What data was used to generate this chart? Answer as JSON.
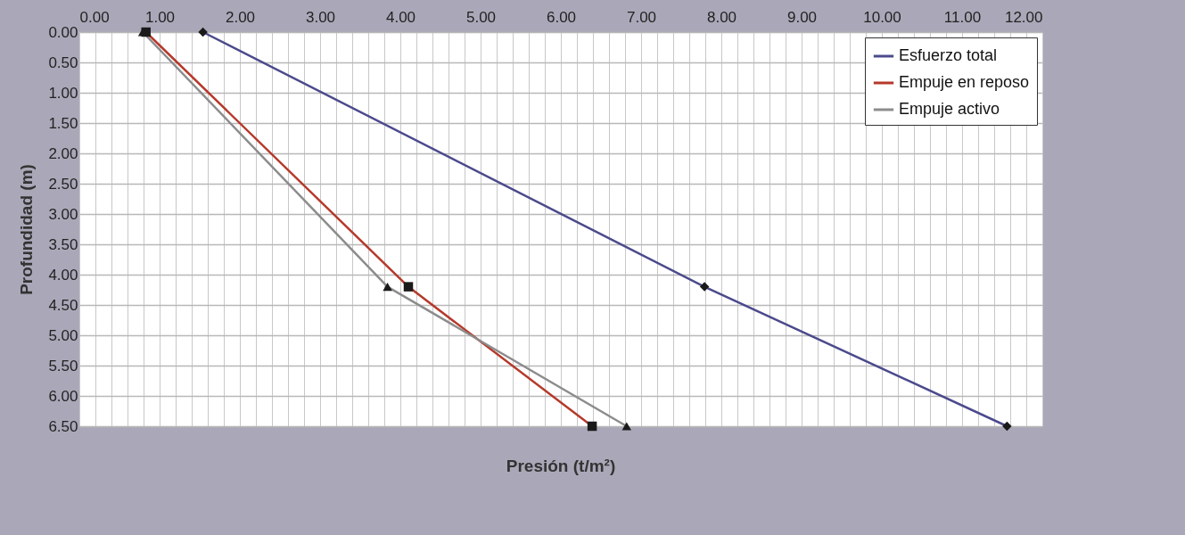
{
  "chart_data": {
    "type": "line",
    "xlabel": "Presión (t/m²)",
    "ylabel": "Profundidad (m)",
    "xlim": [
      0,
      12
    ],
    "ylim": [
      6.5,
      0
    ],
    "xticks": [
      {
        "value": 0,
        "label": "0.00"
      },
      {
        "value": 0.2,
        "label": null
      },
      {
        "value": 0.4,
        "label": null
      },
      {
        "value": 0.6,
        "label": null
      },
      {
        "value": 0.8,
        "label": null
      },
      {
        "value": 1,
        "label": "1.00"
      },
      {
        "value": 1.2,
        "label": null
      },
      {
        "value": 1.4,
        "label": null
      },
      {
        "value": 1.6,
        "label": null
      },
      {
        "value": 1.8,
        "label": null
      },
      {
        "value": 2,
        "label": "2.00"
      },
      {
        "value": 2.2,
        "label": null
      },
      {
        "value": 2.4,
        "label": null
      },
      {
        "value": 2.6,
        "label": null
      },
      {
        "value": 2.8,
        "label": null
      },
      {
        "value": 3,
        "label": "3.00"
      },
      {
        "value": 3.2,
        "label": null
      },
      {
        "value": 3.4,
        "label": null
      },
      {
        "value": 3.6,
        "label": null
      },
      {
        "value": 3.8,
        "label": null
      },
      {
        "value": 4,
        "label": "4.00"
      },
      {
        "value": 4.2,
        "label": null
      },
      {
        "value": 4.4,
        "label": null
      },
      {
        "value": 4.6,
        "label": null
      },
      {
        "value": 4.8,
        "label": null
      },
      {
        "value": 5,
        "label": "5.00"
      },
      {
        "value": 5.2,
        "label": null
      },
      {
        "value": 5.4,
        "label": null
      },
      {
        "value": 5.6,
        "label": null
      },
      {
        "value": 5.8,
        "label": null
      },
      {
        "value": 6,
        "label": "6.00"
      },
      {
        "value": 6.2,
        "label": null
      },
      {
        "value": 6.4,
        "label": null
      },
      {
        "value": 6.6,
        "label": null
      },
      {
        "value": 6.8,
        "label": null
      },
      {
        "value": 7,
        "label": "7.00"
      },
      {
        "value": 7.2,
        "label": null
      },
      {
        "value": 7.4,
        "label": null
      },
      {
        "value": 7.6,
        "label": null
      },
      {
        "value": 7.8,
        "label": null
      },
      {
        "value": 8,
        "label": "8.00"
      },
      {
        "value": 8.2,
        "label": null
      },
      {
        "value": 8.4,
        "label": null
      },
      {
        "value": 8.6,
        "label": null
      },
      {
        "value": 8.8,
        "label": null
      },
      {
        "value": 9,
        "label": "9.00"
      },
      {
        "value": 9.2,
        "label": null
      },
      {
        "value": 9.4,
        "label": null
      },
      {
        "value": 9.6,
        "label": null
      },
      {
        "value": 9.8,
        "label": null
      },
      {
        "value": 10,
        "label": "10.00"
      },
      {
        "value": 10.2,
        "label": null
      },
      {
        "value": 10.4,
        "label": null
      },
      {
        "value": 10.6,
        "label": null
      },
      {
        "value": 10.8,
        "label": null
      },
      {
        "value": 11,
        "label": "11.00"
      },
      {
        "value": 11.2,
        "label": null
      },
      {
        "value": 11.4,
        "label": null
      },
      {
        "value": 11.6,
        "label": null
      },
      {
        "value": 11.8,
        "label": null
      },
      {
        "value": 12,
        "label": "12.00"
      }
    ],
    "yticks": [
      {
        "value": 0,
        "label": "0.00"
      },
      {
        "value": 0.5,
        "label": "0.50"
      },
      {
        "value": 1,
        "label": "1.00"
      },
      {
        "value": 1.5,
        "label": "1.50"
      },
      {
        "value": 2,
        "label": "2.00"
      },
      {
        "value": 2.5,
        "label": "2.50"
      },
      {
        "value": 3,
        "label": "3.00"
      },
      {
        "value": 3.5,
        "label": "3.50"
      },
      {
        "value": 4,
        "label": "4.00"
      },
      {
        "value": 4.5,
        "label": "4.50"
      },
      {
        "value": 5,
        "label": "5.00"
      },
      {
        "value": 5.5,
        "label": "5.50"
      },
      {
        "value": 6,
        "label": "6.00"
      },
      {
        "value": 6.5,
        "label": "6.50"
      }
    ],
    "grid": true,
    "legend": "top right",
    "series": [
      {
        "name": "Esfuerzo total",
        "color": "#4b4a8c",
        "marker": "diamond",
        "x": [
          1.54,
          7.79,
          11.56
        ],
        "values": [
          0,
          4.2,
          6.5
        ]
      },
      {
        "name": "Empuje en reposo",
        "color": "#b5392a",
        "marker": "square",
        "x": [
          0.83,
          4.1,
          6.39
        ],
        "values": [
          0,
          4.2,
          6.5
        ]
      },
      {
        "name": "Empuje activo",
        "color": "#8c8c8c",
        "marker": "triangle",
        "x": [
          0.79,
          3.84,
          6.82
        ],
        "values": [
          0,
          4.2,
          6.5
        ]
      }
    ]
  }
}
